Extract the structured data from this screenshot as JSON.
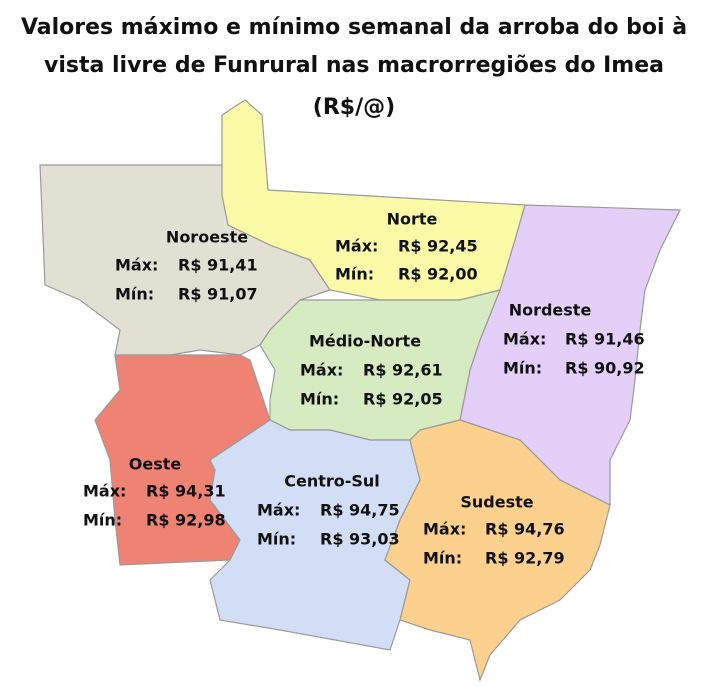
{
  "title": [
    "Valores máximo e mínimo semanal da arroba do boi à",
    "vista livre de Funrural nas macrorregiões do Imea",
    "(R$/@)"
  ],
  "labels": {
    "max": "Máx:",
    "min": "Mín:"
  },
  "regions": [
    {
      "name": "Noroeste",
      "max": "R$ 91,41",
      "min": "R$ 91,07"
    },
    {
      "name": "Norte",
      "max": "R$ 92,45",
      "min": "R$ 92,00"
    },
    {
      "name": "Nordeste",
      "max": "R$ 91,46",
      "min": "R$ 90,92"
    },
    {
      "name": "Médio-Norte",
      "max": "R$ 92,61",
      "min": "R$ 92,05"
    },
    {
      "name": "Oeste",
      "max": "R$ 94,31",
      "min": "R$ 92,98"
    },
    {
      "name": "Centro-Sul",
      "max": "R$ 94,75",
      "min": "R$ 93,03"
    },
    {
      "name": "Sudeste",
      "max": "R$ 94,76",
      "min": "R$ 92,79"
    }
  ]
}
